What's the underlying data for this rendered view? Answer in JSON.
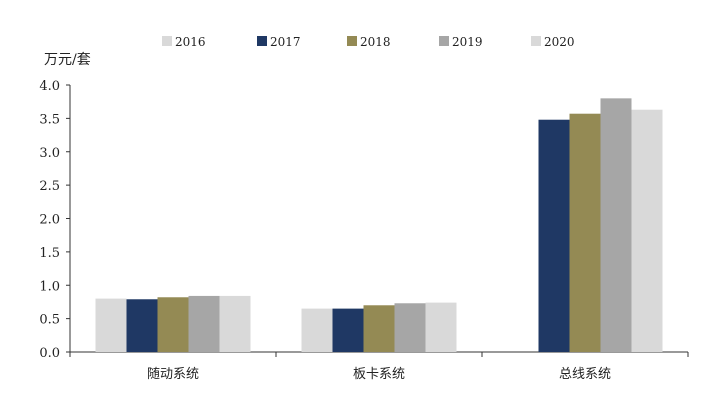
{
  "chart_data": {
    "type": "bar",
    "ylabel": "万元/套",
    "ylim": [
      0,
      4.0
    ],
    "yticks": [
      "0.0",
      "0.5",
      "1.0",
      "1.5",
      "2.0",
      "2.5",
      "3.0",
      "3.5",
      "4.0"
    ],
    "categories": [
      "随动系统",
      "板卡系统",
      "总线系统"
    ],
    "series": [
      {
        "name": "2016",
        "color": "#d9d9d9",
        "values": [
          0.8,
          0.65,
          0.0
        ]
      },
      {
        "name": "2017",
        "color": "#1f3864",
        "values": [
          0.79,
          0.65,
          3.48
        ]
      },
      {
        "name": "2018",
        "color": "#948a54",
        "values": [
          0.82,
          0.7,
          3.57
        ]
      },
      {
        "name": "2019",
        "color": "#a6a6a6",
        "values": [
          0.84,
          0.73,
          3.8
        ]
      },
      {
        "name": "2020",
        "color": "#d9d9d9",
        "values": [
          0.84,
          0.74,
          3.63
        ]
      }
    ],
    "legend_position": "top",
    "grid": false
  }
}
